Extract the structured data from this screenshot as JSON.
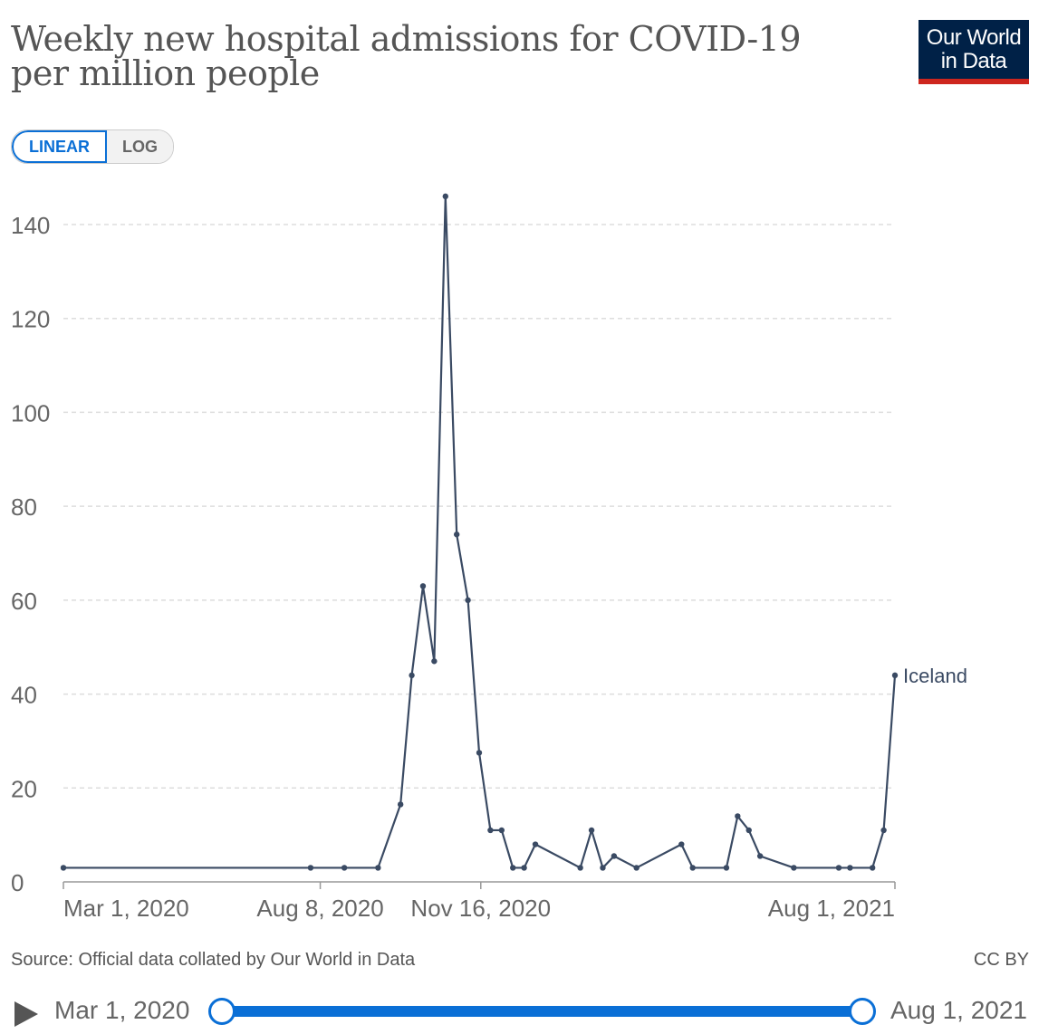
{
  "header": {
    "title": "Weekly new hospital admissions for COVID-19 per million people",
    "logo_line1": "Our World",
    "logo_line2": "in Data"
  },
  "controls": {
    "linear_label": "LINEAR",
    "log_label": "LOG",
    "active_scale": "linear"
  },
  "footer": {
    "source": "Source: Official data collated by Our World in Data",
    "license": "CC BY"
  },
  "timeline": {
    "start_label": "Mar 1, 2020",
    "end_label": "Aug 1, 2021"
  },
  "colors": {
    "line": "#3a4a63",
    "accent": "#0a6fd6",
    "grid": "#dddddd",
    "logo_bg": "#002147",
    "logo_bar": "#ce261e"
  },
  "chart_data": {
    "type": "line",
    "title": "Weekly new hospital admissions for COVID-19 per million people",
    "xlabel": "",
    "ylabel": "",
    "ylim": [
      0,
      140
    ],
    "yticks": [
      0,
      20,
      40,
      60,
      80,
      100,
      120,
      140
    ],
    "x_range_days": [
      0,
      518
    ],
    "xticks": [
      {
        "day": 0,
        "label": "Mar 1, 2020"
      },
      {
        "day": 160,
        "label": "Aug 8, 2020"
      },
      {
        "day": 260,
        "label": "Nov 16, 2020"
      },
      {
        "day": 518,
        "label": "Aug 1, 2021"
      }
    ],
    "grid": true,
    "series": [
      {
        "name": "Iceland",
        "x_days": [
          0,
          154,
          175,
          196,
          210,
          217,
          224,
          231,
          238,
          245,
          252,
          259,
          266,
          273,
          280,
          287,
          294,
          322,
          329,
          336,
          343,
          357,
          385,
          392,
          413,
          420,
          427,
          434,
          455,
          483,
          490,
          504,
          511,
          518
        ],
        "values": [
          3,
          3,
          3,
          3,
          16.5,
          44,
          63,
          47,
          146,
          74,
          60,
          27.5,
          11,
          11,
          3,
          3,
          8,
          3,
          11,
          3,
          5.5,
          3,
          8,
          3,
          3,
          14,
          11,
          5.5,
          3,
          3,
          3,
          3,
          11,
          44
        ]
      }
    ]
  }
}
